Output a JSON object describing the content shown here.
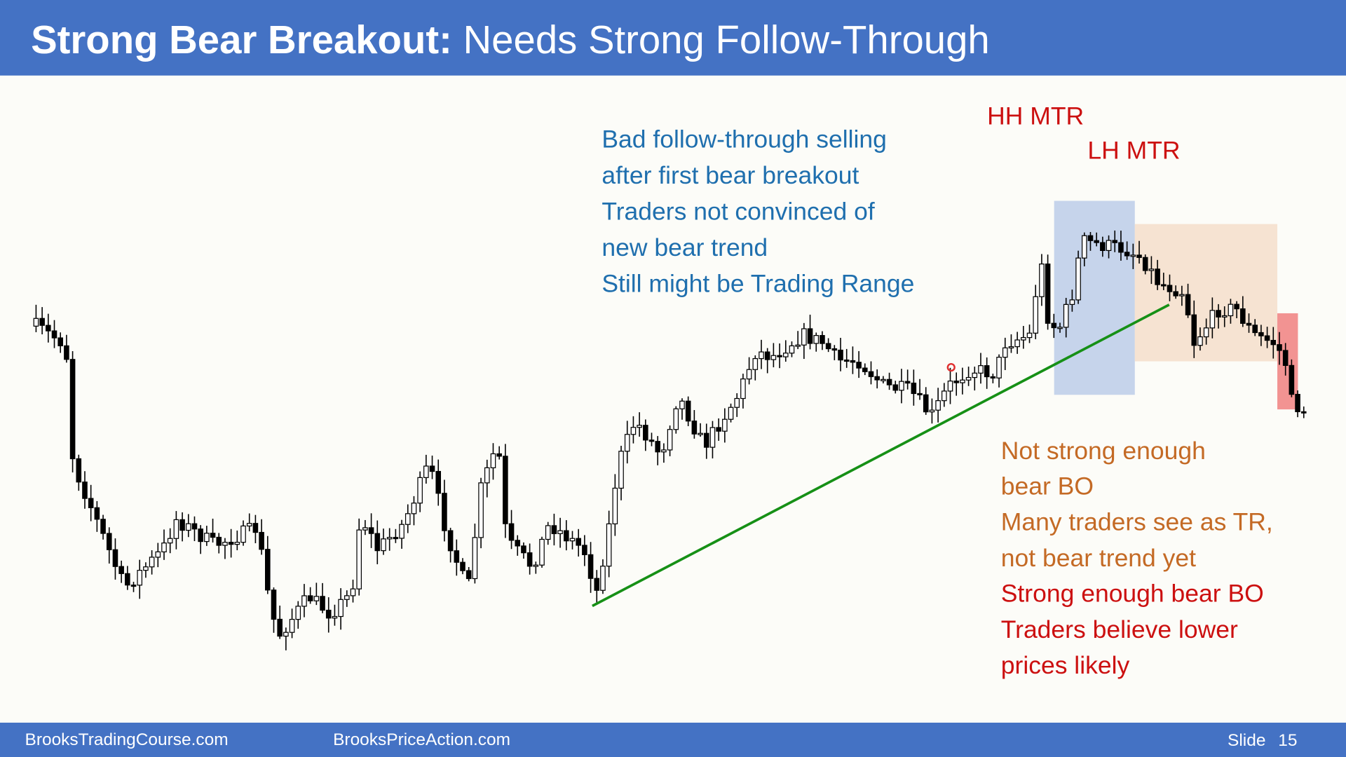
{
  "header": {
    "title_bold": "Strong Bear Breakout:",
    "title_rest": "Needs Strong Follow-Through"
  },
  "blue_note": [
    "Bad follow-through selling",
    "after first bear breakout",
    "Traders not convinced of",
    "new bear trend",
    "Still might be Trading Range"
  ],
  "labels": {
    "hh": "HH MTR",
    "lh": "LH MTR"
  },
  "orange_note": [
    "Not strong enough",
    "bear BO",
    "Many traders see as TR,",
    "not bear trend yet"
  ],
  "red_note": [
    "Strong enough bear BO",
    "Traders believe lower",
    "prices likely"
  ],
  "footer": {
    "left": "BrooksTradingCourse.com",
    "middle": "BrooksPriceAction.com",
    "slide_label": "Slide",
    "slide_number": 15
  }
}
